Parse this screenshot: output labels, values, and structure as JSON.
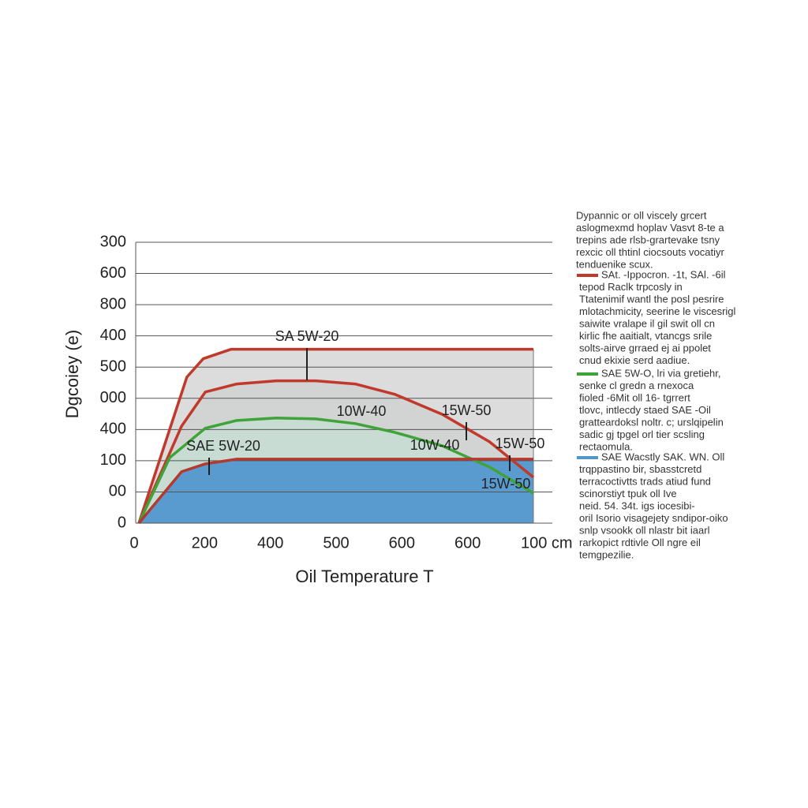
{
  "chart_data": {
    "type": "line",
    "x_label": "Oil Temperature T",
    "y_label": "Dgcoiey (e)",
    "xlim": [
      0,
      6
    ],
    "ylim": [
      0,
      9
    ],
    "xticks": [
      {
        "value": 0,
        "label": "0"
      },
      {
        "value": 1,
        "label": "200"
      },
      {
        "value": 2,
        "label": "400"
      },
      {
        "value": 3,
        "label": "500"
      },
      {
        "value": 4,
        "label": "600"
      },
      {
        "value": 5,
        "label": "600"
      },
      {
        "value": 6,
        "label": "100 cm"
      }
    ],
    "yticks": [
      {
        "value": 0,
        "label": "0"
      },
      {
        "value": 1,
        "label": "00"
      },
      {
        "value": 2,
        "label": "100"
      },
      {
        "value": 3,
        "label": "400"
      },
      {
        "value": 4,
        "label": "000"
      },
      {
        "value": 5,
        "label": "500"
      },
      {
        "value": 6,
        "label": "400"
      },
      {
        "value": 7,
        "label": "800"
      },
      {
        "value": 8,
        "label": "600"
      },
      {
        "value": 9,
        "label": "300"
      }
    ],
    "grid": true,
    "series": [
      {
        "color": "#c0392b",
        "fill": "#dcdcdc",
        "x": [
          0,
          0.73,
          0.98,
          1.4,
          6
        ],
        "values": [
          0,
          4.68,
          5.27,
          5.57,
          5.57
        ]
      },
      {
        "color": "#c0392b",
        "fill": "#d2d4d4",
        "x": [
          0,
          0.65,
          1.01,
          1.49,
          2.09,
          2.69,
          3.29,
          3.89,
          4.61,
          5.33,
          6
        ],
        "values": [
          0,
          3.11,
          4.2,
          4.46,
          4.56,
          4.56,
          4.46,
          4.13,
          3.49,
          2.61,
          1.47
        ]
      },
      {
        "color": "#3fa33a",
        "fill": "#c8dcd4",
        "x": [
          0,
          0.47,
          1.01,
          1.49,
          2.09,
          2.69,
          3.29,
          3.89,
          4.61,
          5.33,
          6
        ],
        "values": [
          0,
          2.1,
          3.04,
          3.29,
          3.37,
          3.34,
          3.19,
          2.91,
          2.48,
          1.8,
          0.96
        ]
      },
      {
        "color": "#b23a2e",
        "fill": "#5a9bcf",
        "x": [
          0,
          0.65,
          1.01,
          1.49,
          6
        ],
        "values": [
          0,
          1.65,
          1.9,
          2.05,
          2.05
        ]
      }
    ],
    "annotations": [
      "SA 5W-20",
      "10W-40",
      "15W-50",
      "SAE 5W-20",
      "10W-40",
      "15W-50",
      "15W-50"
    ],
    "legend": [
      {
        "lines": [
          "Dypannic or oll viscely grcert",
          "aslogmexmd hoplav Vasvt 8-te a",
          "trepins ade rlsb-grartevake tsny",
          "rexcic oll thtinl ciocsouts vocatiyr",
          "tenduenike scux."
        ]
      },
      {
        "color": "#c0392b",
        "lines": [
          "SAt. -Ippocron. -1t, SAl. -6il",
          "tepod Raclk trpcosly in",
          "Ttatenimif wantl the posl pesrire",
          "mlotachmicity, seerine le viscesrigl",
          "saiwite vralape il gil swit oll cn",
          "kirlic fhe aaitialt, vtancgs srile",
          "solts-airve grraed ej ai ppolet",
          "cnud ekixie serd aadiue."
        ]
      },
      {
        "color": "#3fa33a",
        "lines": [
          "SAE 5W-O, lri via gretiehr,",
          "senke cl gredn a rnexoca",
          "fioled -6Mit oll 16- tgrrert",
          "tlovc, intlecdy staed SAE -Oil",
          "gratteardoksl noltr. c; urslqipelin",
          "sadic gj tpgel orl tier scsling",
          "rectaomula."
        ]
      },
      {
        "color": "#4f97c8",
        "lines": [
          "SAE Wacstly SAK. WN. Oll",
          "trqppastino bir, sbasstcretd",
          "terracoctivtts trads atiud fund",
          "scinorstiyt tpuk oll Ive",
          "neid. 54. 34t. igs iocesibi-",
          "oril Isorio visagejety sndipor-oiko",
          "snlp vsookk oll nlastr bit iaarl",
          "rarkopict rdtivle Oll ngre eil",
          "temgpezilie."
        ]
      }
    ]
  }
}
